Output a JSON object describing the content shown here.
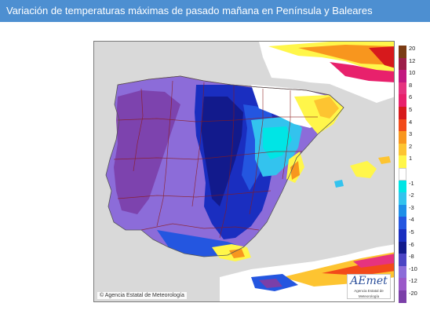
{
  "page": {
    "title": "Variación de temperaturas máximas de pasado mañana en Península y Baleares"
  },
  "map": {
    "credit": "© Agencia Estatal de Meteorología",
    "logo_text": "AEmet",
    "logo_subtext": "Agencia Estatal de Meteorología",
    "sea_color": "#d9d9d9",
    "border_color": "#8b1a1a"
  },
  "legend": {
    "items": [
      {
        "label": "20",
        "color": "#7a3b14"
      },
      {
        "label": "12",
        "color": "#9c1e49"
      },
      {
        "label": "10",
        "color": "#c2187f"
      },
      {
        "label": "8",
        "color": "#e6337f"
      },
      {
        "label": "6",
        "color": "#e8216c"
      },
      {
        "label": "5",
        "color": "#d7191c"
      },
      {
        "label": "4",
        "color": "#f24a1a"
      },
      {
        "label": "3",
        "color": "#f8961e"
      },
      {
        "label": "2",
        "color": "#fdc431"
      },
      {
        "label": "1",
        "color": "#fff64a"
      },
      {
        "label": "",
        "color": "#ffffff"
      },
      {
        "label": "-1",
        "color": "#00e5e5"
      },
      {
        "label": "-2",
        "color": "#33c3ee"
      },
      {
        "label": "-3",
        "color": "#1e8fe8"
      },
      {
        "label": "-4",
        "color": "#2456e0"
      },
      {
        "label": "-5",
        "color": "#1a2ec0"
      },
      {
        "label": "-6",
        "color": "#121a8c"
      },
      {
        "label": "-8",
        "color": "#4b44c4"
      },
      {
        "label": "-10",
        "color": "#8c6cd9"
      },
      {
        "label": "-12",
        "color": "#9a58c8"
      },
      {
        "label": "-20",
        "color": "#7b3fa8"
      }
    ]
  }
}
